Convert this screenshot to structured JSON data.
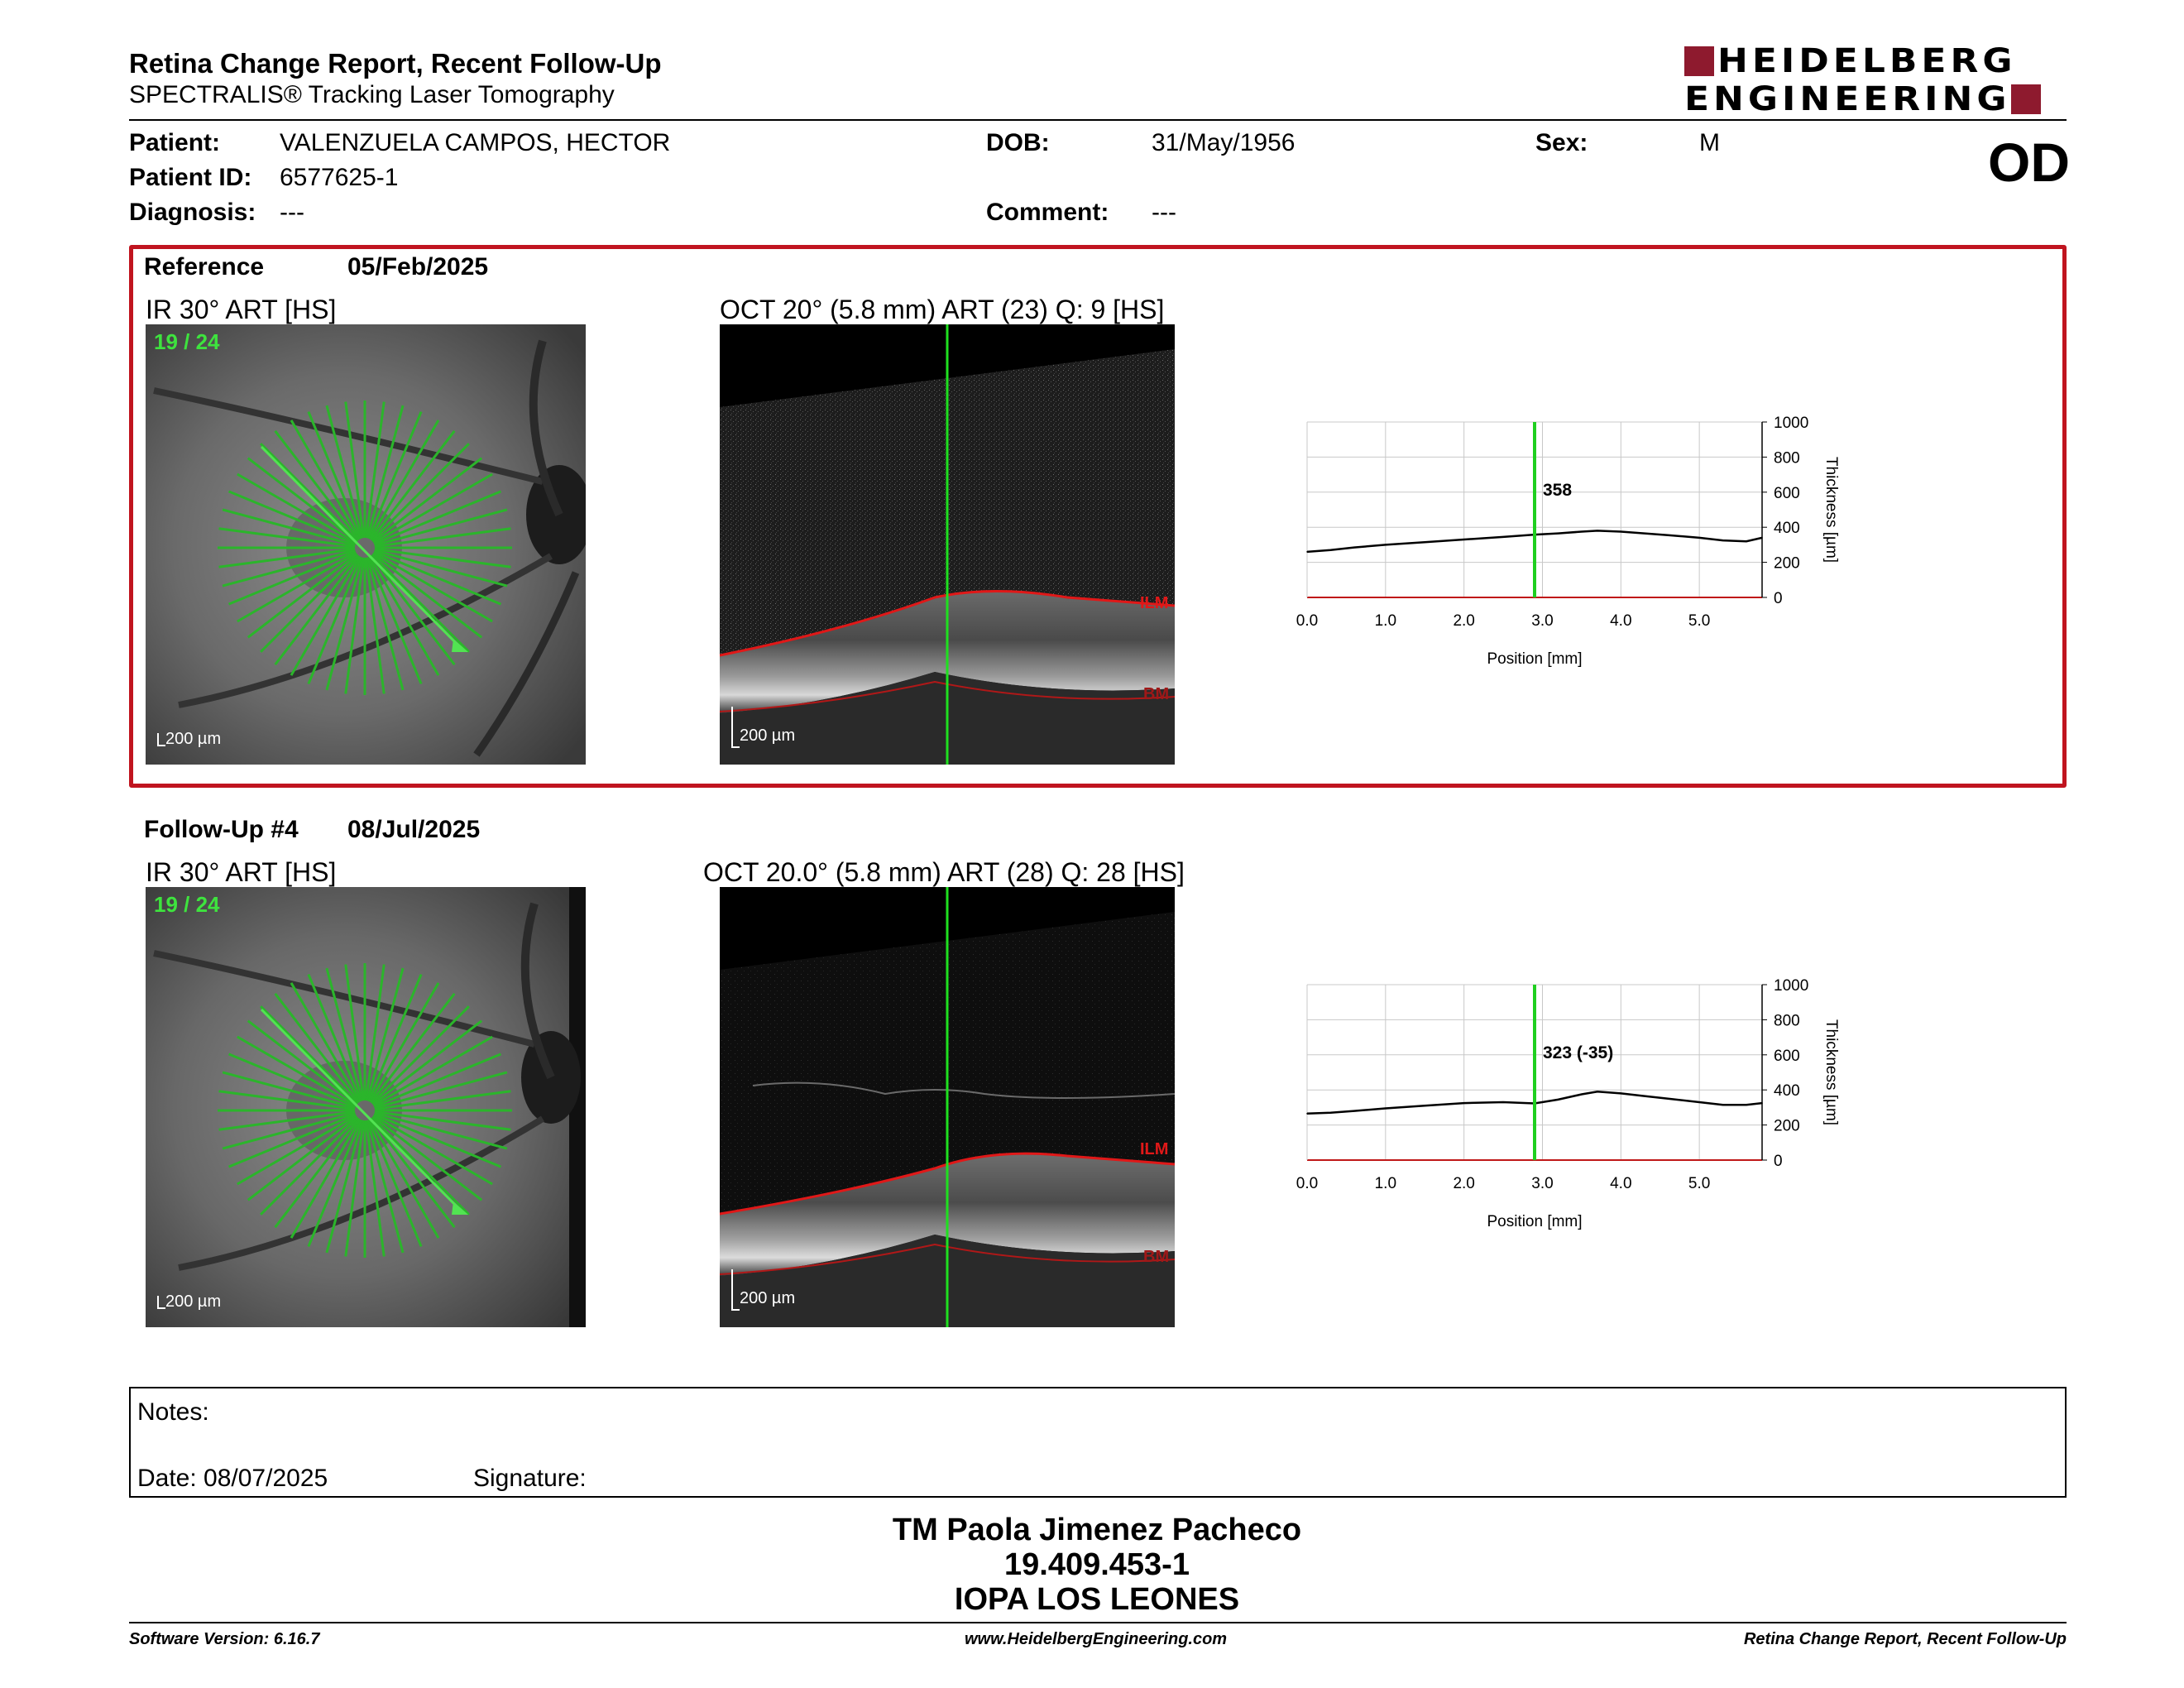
{
  "header": {
    "title": "Retina Change Report, Recent Follow-Up",
    "subtitle": "SPECTRALIS® Tracking Laser Tomography",
    "logo_line1": "HEIDELBERG",
    "logo_line2": "ENGINEERING",
    "eye": "OD",
    "colors": {
      "brand": "#8e1a2e",
      "reference_box": "#c0141f"
    }
  },
  "patient": {
    "name_label": "Patient:",
    "name": "VALENZUELA CAMPOS, HECTOR",
    "id_label": "Patient ID:",
    "id": "6577625-1",
    "diagnosis_label": "Diagnosis:",
    "diagnosis": "---",
    "dob_label": "DOB:",
    "dob": "31/May/1956",
    "comment_label": "Comment:",
    "comment": "---",
    "sex_label": "Sex:",
    "sex": "M"
  },
  "reference": {
    "label": "Reference",
    "date": "05/Feb/2025",
    "ir_caption": "IR 30° ART [HS]",
    "oct_caption": "OCT 20° (5.8 mm) ART (23) Q: 9 [HS]",
    "scan_index": "19 / 24",
    "scale": "200 µm",
    "ilm": "ILM",
    "bm": "BM"
  },
  "followup": {
    "label": "Follow-Up #4",
    "date": "08/Jul/2025",
    "ir_caption": "IR 30° ART [HS]",
    "oct_caption": "OCT 20.0° (5.8 mm) ART (28) Q: 28 [HS]",
    "scan_index": "19 / 24",
    "scale": "200 µm",
    "ilm": "ILM",
    "bm": "BM"
  },
  "chart_data": [
    {
      "type": "line",
      "xlabel": "Position [mm]",
      "ylabel": "Thickness [µm]",
      "xlim": [
        0,
        5.8
      ],
      "ylim": [
        0,
        1000
      ],
      "x_ticks": [
        "0.0",
        "1.0",
        "2.0",
        "3.0",
        "4.0",
        "5.0"
      ],
      "x_tick_values": [
        0,
        1,
        2,
        3,
        4,
        5
      ],
      "y_ticks": [
        "0",
        "200",
        "400",
        "600",
        "800",
        "1000"
      ],
      "y_tick_values": [
        0,
        200,
        400,
        600,
        800,
        1000
      ],
      "grid": true,
      "cursor_x": 2.9,
      "cursor_label": "358",
      "series": [
        {
          "x": [
            0,
            0.3,
            0.6,
            1.0,
            1.5,
            2.0,
            2.5,
            2.9,
            3.2,
            3.5,
            3.7,
            4.0,
            4.3,
            4.6,
            5.0,
            5.3,
            5.6,
            5.8
          ],
          "values": [
            260,
            270,
            285,
            300,
            315,
            330,
            345,
            358,
            365,
            375,
            380,
            375,
            365,
            355,
            340,
            325,
            320,
            340
          ]
        }
      ]
    },
    {
      "type": "line",
      "xlabel": "Position [mm]",
      "ylabel": "Thickness [µm]",
      "xlim": [
        0,
        5.8
      ],
      "ylim": [
        0,
        1000
      ],
      "x_ticks": [
        "0.0",
        "1.0",
        "2.0",
        "3.0",
        "4.0",
        "5.0"
      ],
      "x_tick_values": [
        0,
        1,
        2,
        3,
        4,
        5
      ],
      "y_ticks": [
        "0",
        "200",
        "400",
        "600",
        "800",
        "1000"
      ],
      "y_tick_values": [
        0,
        200,
        400,
        600,
        800,
        1000
      ],
      "grid": true,
      "cursor_x": 2.9,
      "cursor_label": "323 (-35)",
      "series": [
        {
          "x": [
            0,
            0.3,
            0.6,
            1.0,
            1.5,
            2.0,
            2.5,
            2.9,
            3.2,
            3.5,
            3.7,
            4.0,
            4.3,
            4.6,
            5.0,
            5.3,
            5.6,
            5.8
          ],
          "values": [
            265,
            270,
            280,
            295,
            310,
            325,
            330,
            323,
            345,
            375,
            390,
            380,
            365,
            350,
            330,
            315,
            315,
            325
          ]
        }
      ]
    }
  ],
  "notes": {
    "label": "Notes:",
    "date_label": "Date: 08/07/2025",
    "signature_label": "Signature:"
  },
  "signer": {
    "name": "TM Paola Jimenez Pacheco",
    "id": "19.409.453-1",
    "org": "IOPA LOS LEONES"
  },
  "footer": {
    "software": "Software Version: 6.16.7",
    "website": "www.HeidelbergEngineering.com",
    "report": "Retina Change Report, Recent Follow-Up"
  }
}
